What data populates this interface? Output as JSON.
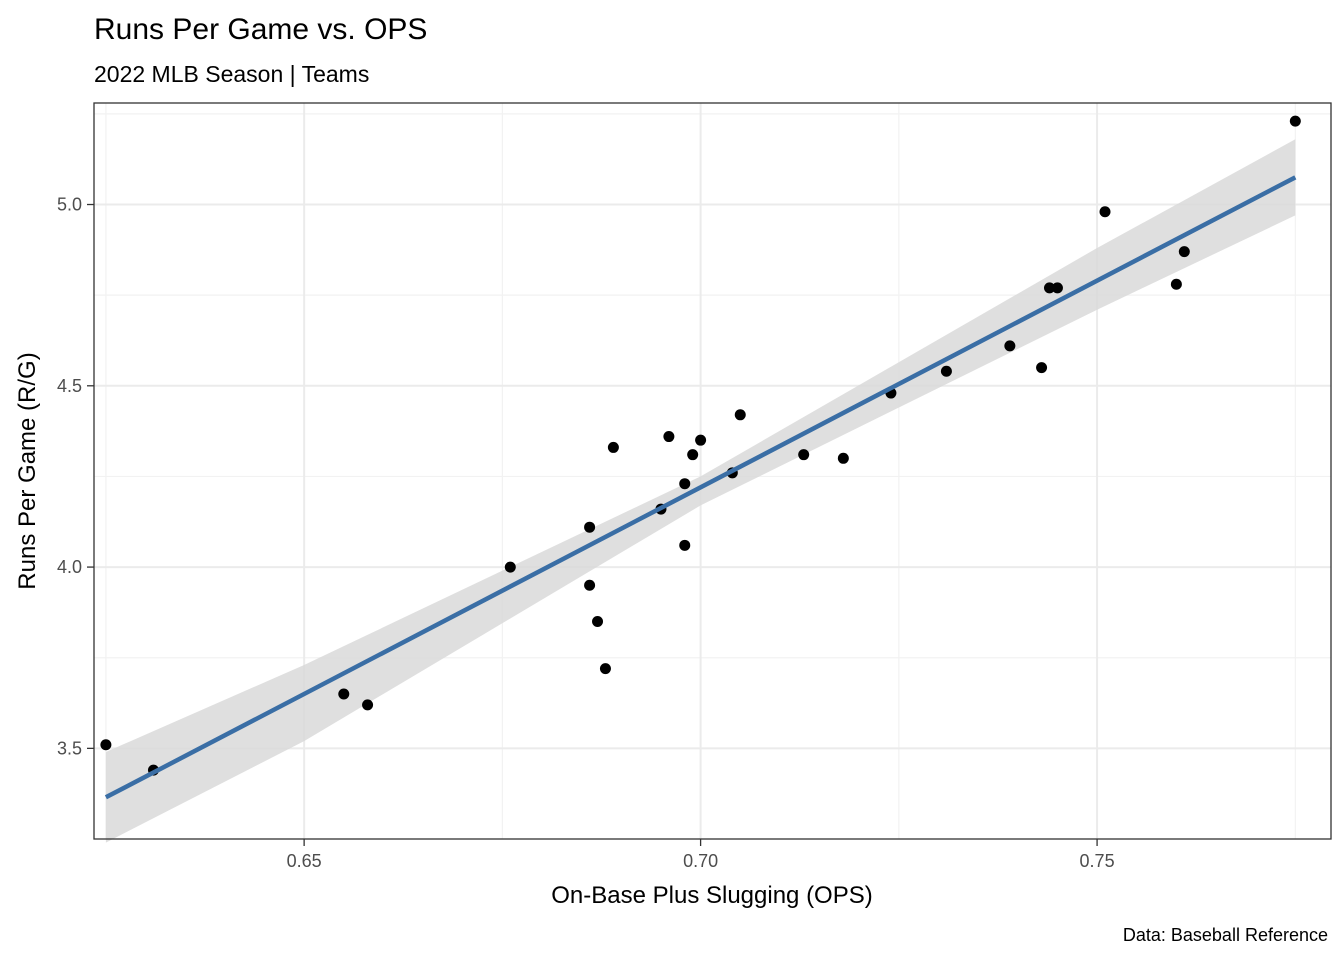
{
  "chart_data": {
    "type": "scatter",
    "title": "Runs Per Game vs. OPS",
    "subtitle": "2022 MLB Season | Teams",
    "xlabel": "On-Base Plus Slugging (OPS)",
    "ylabel": "Runs Per Game (R/G)",
    "caption": "Data: Baseball Reference",
    "xlim": [
      0.6235,
      0.7795
    ],
    "ylim": [
      3.25,
      5.28
    ],
    "x_ticks": [
      0.65,
      0.7,
      0.75
    ],
    "x_tick_labels": [
      "0.65",
      "0.70",
      "0.75"
    ],
    "y_ticks": [
      3.5,
      4.0,
      4.5,
      5.0
    ],
    "y_tick_labels": [
      "3.5",
      "4.0",
      "4.5",
      "5.0"
    ],
    "grid": true,
    "points": [
      {
        "x": 0.625,
        "y": 3.51
      },
      {
        "x": 0.631,
        "y": 3.44
      },
      {
        "x": 0.655,
        "y": 3.65
      },
      {
        "x": 0.658,
        "y": 3.62
      },
      {
        "x": 0.676,
        "y": 4.0
      },
      {
        "x": 0.686,
        "y": 4.11
      },
      {
        "x": 0.686,
        "y": 3.95
      },
      {
        "x": 0.687,
        "y": 3.85
      },
      {
        "x": 0.688,
        "y": 3.72
      },
      {
        "x": 0.689,
        "y": 4.33
      },
      {
        "x": 0.695,
        "y": 4.16
      },
      {
        "x": 0.696,
        "y": 4.36
      },
      {
        "x": 0.698,
        "y": 4.23
      },
      {
        "x": 0.698,
        "y": 4.06
      },
      {
        "x": 0.699,
        "y": 4.31
      },
      {
        "x": 0.7,
        "y": 4.35
      },
      {
        "x": 0.704,
        "y": 4.26
      },
      {
        "x": 0.705,
        "y": 4.42
      },
      {
        "x": 0.713,
        "y": 4.31
      },
      {
        "x": 0.718,
        "y": 4.3
      },
      {
        "x": 0.724,
        "y": 4.48
      },
      {
        "x": 0.731,
        "y": 4.54
      },
      {
        "x": 0.739,
        "y": 4.61
      },
      {
        "x": 0.743,
        "y": 4.55
      },
      {
        "x": 0.744,
        "y": 4.77
      },
      {
        "x": 0.745,
        "y": 4.77
      },
      {
        "x": 0.751,
        "y": 4.98
      },
      {
        "x": 0.76,
        "y": 4.78
      },
      {
        "x": 0.761,
        "y": 4.87
      },
      {
        "x": 0.775,
        "y": 5.23
      }
    ],
    "trend_line": {
      "type": "linear",
      "x": [
        0.625,
        0.775
      ],
      "y": [
        3.365,
        5.075
      ],
      "color": "#3a6ea5"
    },
    "confidence_band": {
      "color": "#d9d9d9",
      "x": [
        0.625,
        0.65,
        0.7,
        0.75,
        0.775
      ],
      "lower": [
        3.24,
        3.52,
        4.17,
        4.71,
        4.97
      ],
      "upper": [
        3.49,
        3.73,
        4.25,
        4.88,
        5.18
      ]
    },
    "point_color": "#000000"
  }
}
